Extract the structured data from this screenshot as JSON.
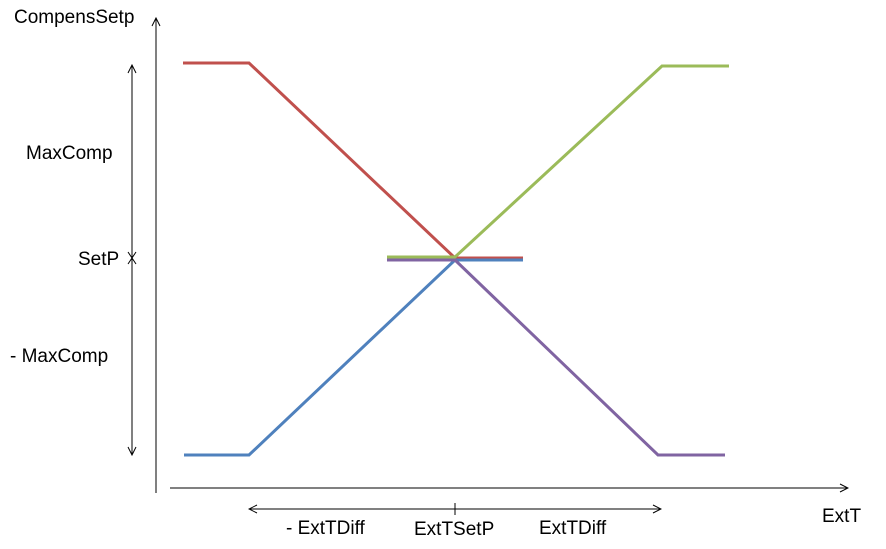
{
  "labels": {
    "y_axis_title": "CompensSetp",
    "x_axis_title": "ExtT",
    "max_comp": "MaxComp",
    "setp": "SetP",
    "neg_max_comp": "- MaxComp",
    "neg_ext_t_diff": "- ExtTDiff",
    "ext_t_setp": "ExtTSetP",
    "ext_t_diff": "ExtTDiff"
  },
  "colors": {
    "axis": "#000000",
    "red": "#c0504d",
    "green": "#9bbb59",
    "blue": "#4f81bd",
    "purple": "#8064a2"
  }
}
